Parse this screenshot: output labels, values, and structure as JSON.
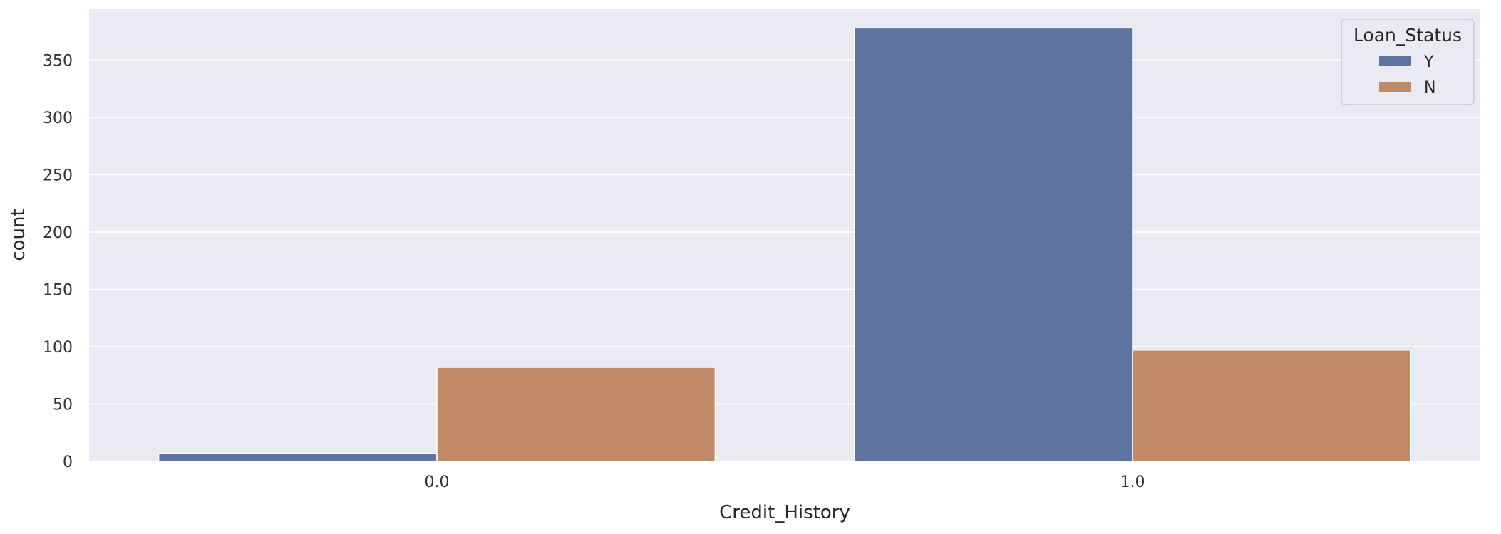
{
  "chart_data": {
    "type": "bar",
    "xlabel": "Credit_History",
    "ylabel": "count",
    "categories": [
      "0.0",
      "1.0"
    ],
    "series": [
      {
        "name": "Y",
        "values": [
          7,
          378
        ],
        "color": "#5d74a0"
      },
      {
        "name": "N",
        "values": [
          82,
          97
        ],
        "color": "#c18a67"
      }
    ],
    "ylim": [
      0,
      395
    ],
    "yticks": [
      0,
      50,
      100,
      150,
      200,
      250,
      300,
      350
    ],
    "grid": true,
    "legend": {
      "title": "Loan_Status",
      "placement": "top-right"
    },
    "background_color": "#eaeaf2",
    "grid_color": "#ffffff"
  }
}
